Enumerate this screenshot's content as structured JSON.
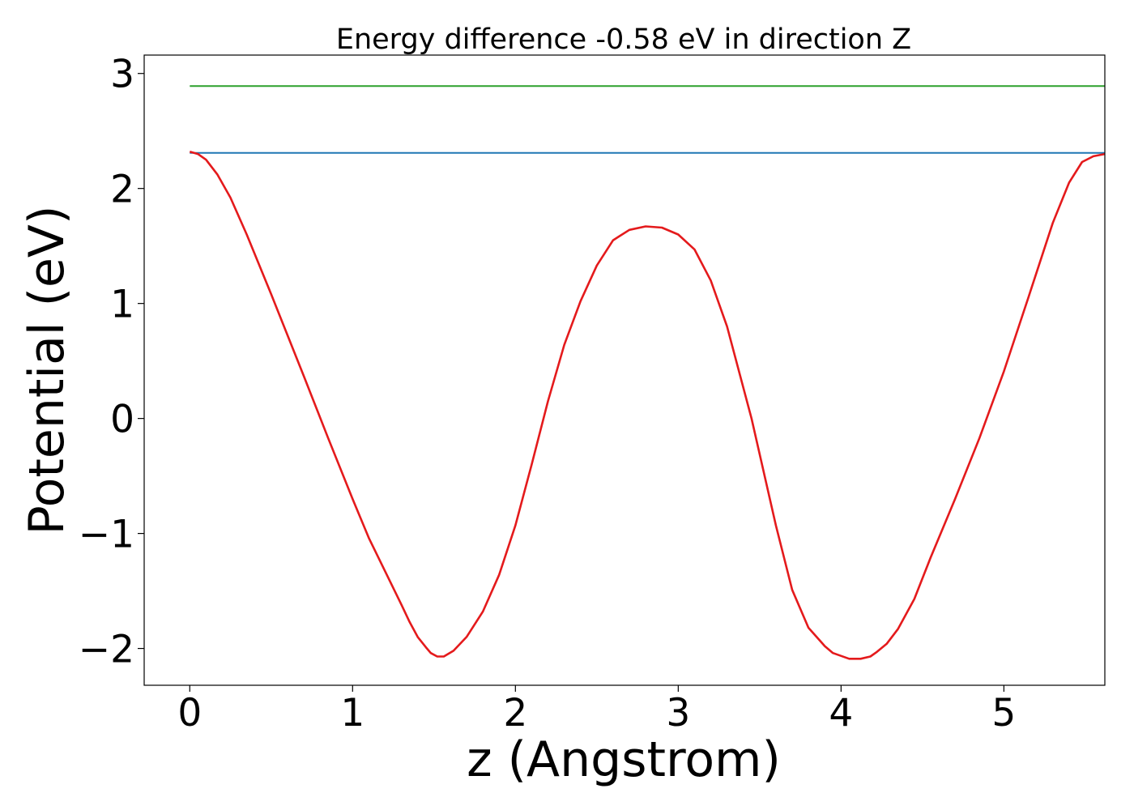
{
  "chart_data": {
    "type": "line",
    "title": "Energy difference -0.58 eV in direction Z",
    "xlabel": "z (Angstrom)",
    "ylabel": "Potential (eV)",
    "xlim": [
      -0.28,
      5.62
    ],
    "ylim": [
      -2.32,
      3.16
    ],
    "xticks": [
      0,
      1,
      2,
      3,
      4,
      5
    ],
    "xtick_labels": [
      "0",
      "1",
      "2",
      "3",
      "4",
      "5"
    ],
    "yticks": [
      -2,
      -1,
      0,
      1,
      2,
      3
    ],
    "ytick_labels": [
      "−2",
      "−1",
      "0",
      "1",
      "2",
      "3"
    ],
    "grid": false,
    "series": [
      {
        "color": "#2ca02c",
        "x": [
          0,
          5.62
        ],
        "y": [
          2.89,
          2.89
        ]
      },
      {
        "color": "#1f77b4",
        "x": [
          0,
          5.62
        ],
        "y": [
          2.31,
          2.31
        ]
      },
      {
        "color": "#e41a1c",
        "x": [
          0,
          0.05,
          0.1,
          0.17,
          0.25,
          0.35,
          0.5,
          0.7,
          0.85,
          1.0,
          1.1,
          1.2,
          1.3,
          1.35,
          1.4,
          1.45,
          1.48,
          1.52,
          1.56,
          1.62,
          1.7,
          1.8,
          1.9,
          2.0,
          2.1,
          2.2,
          2.3,
          2.4,
          2.5,
          2.6,
          2.7,
          2.8,
          2.9,
          3.0,
          3.1,
          3.2,
          3.3,
          3.45,
          3.6,
          3.7,
          3.8,
          3.9,
          3.95,
          4.05,
          4.12,
          4.18,
          4.22,
          4.28,
          4.35,
          4.45,
          4.55,
          4.7,
          4.85,
          5.0,
          5.15,
          5.3,
          5.4,
          5.48,
          5.55,
          5.62
        ],
        "y": [
          2.32,
          2.3,
          2.25,
          2.12,
          1.92,
          1.6,
          1.08,
          0.37,
          -0.17,
          -0.7,
          -1.04,
          -1.33,
          -1.62,
          -1.77,
          -1.9,
          -1.99,
          -2.04,
          -2.07,
          -2.07,
          -2.02,
          -1.9,
          -1.68,
          -1.36,
          -0.93,
          -0.4,
          0.15,
          0.64,
          1.02,
          1.33,
          1.55,
          1.64,
          1.67,
          1.66,
          1.6,
          1.47,
          1.2,
          0.8,
          0.0,
          -0.93,
          -1.49,
          -1.82,
          -1.98,
          -2.04,
          -2.09,
          -2.09,
          -2.07,
          -2.03,
          -1.96,
          -1.83,
          -1.57,
          -1.21,
          -0.7,
          -0.17,
          0.41,
          1.05,
          1.7,
          2.05,
          2.23,
          2.28,
          2.3
        ]
      }
    ]
  }
}
